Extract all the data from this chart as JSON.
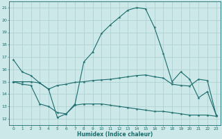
{
  "x": [
    0,
    1,
    2,
    3,
    4,
    5,
    6,
    7,
    8,
    9,
    10,
    11,
    12,
    13,
    14,
    15,
    16,
    17,
    18,
    19,
    20,
    21,
    22,
    23
  ],
  "line1": [
    16.8,
    15.8,
    15.5,
    14.9,
    14.4,
    12.1,
    12.4,
    13.2,
    16.6,
    17.4,
    18.9,
    19.6,
    20.2,
    20.8,
    21.0,
    20.9,
    19.4,
    17.3,
    15.0,
    15.8,
    15.2,
    13.7,
    14.2,
    12.3
  ],
  "line2": [
    15.0,
    15.0,
    15.0,
    14.9,
    14.4,
    14.7,
    14.8,
    14.95,
    15.0,
    15.1,
    15.15,
    15.2,
    15.3,
    15.4,
    15.5,
    15.55,
    15.4,
    15.3,
    14.8,
    14.7,
    14.65,
    15.2,
    15.1,
    12.3
  ],
  "line3": [
    15.0,
    14.8,
    14.7,
    13.2,
    13.0,
    12.5,
    12.4,
    13.1,
    13.2,
    13.2,
    13.2,
    13.1,
    13.0,
    12.9,
    12.8,
    12.7,
    12.6,
    12.6,
    12.5,
    12.4,
    12.3,
    12.3,
    12.3,
    12.2
  ],
  "color": "#1a6b6b",
  "bg_color": "#cce8e8",
  "grid_color": "#aacece",
  "xlabel": "Humidex (Indice chaleur)",
  "ylim": [
    11.5,
    21.5
  ],
  "xlim": [
    -0.5,
    23.5
  ],
  "yticks": [
    12,
    13,
    14,
    15,
    16,
    17,
    18,
    19,
    20,
    21
  ],
  "xticks": [
    0,
    1,
    2,
    3,
    4,
    5,
    6,
    7,
    8,
    9,
    10,
    11,
    12,
    13,
    14,
    15,
    16,
    17,
    18,
    19,
    20,
    21,
    22,
    23
  ]
}
